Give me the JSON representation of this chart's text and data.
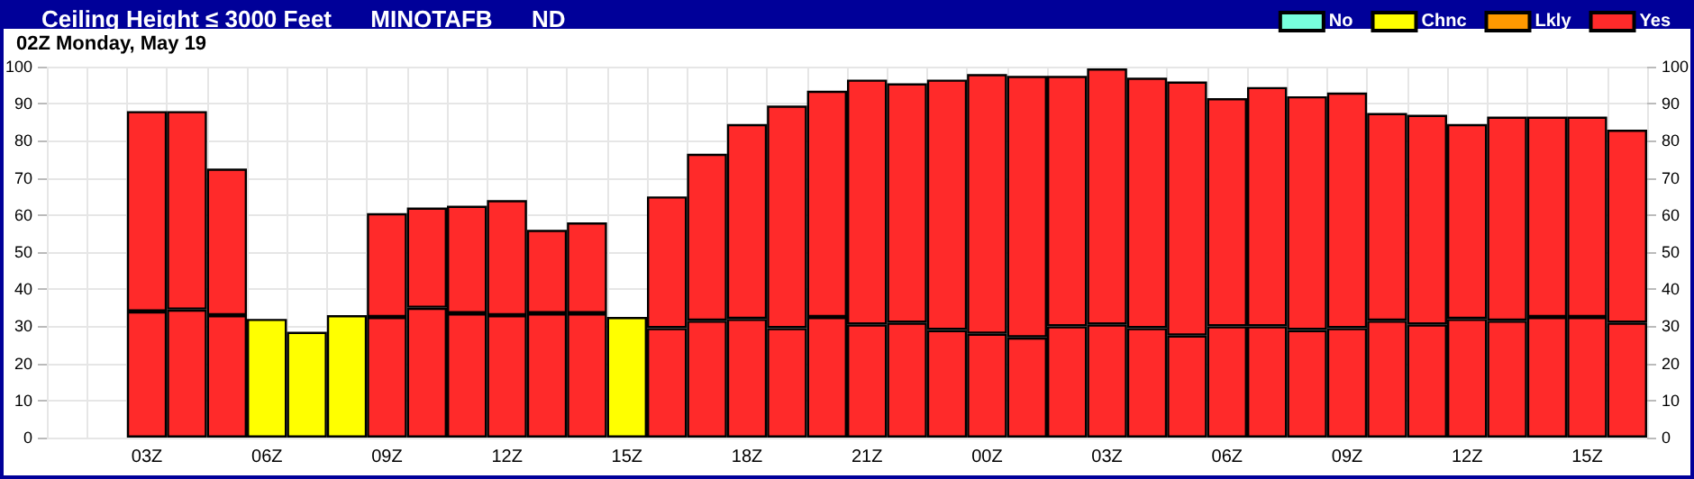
{
  "chart_data": {
    "type": "bar",
    "stacked": true,
    "title": "Ceiling Height ≤ 3000 Feet      MINOTAFB      ND",
    "subtitle": "02Z Monday, May 19",
    "categories": [
      null,
      null,
      "03Z",
      null,
      null,
      "06Z",
      null,
      null,
      "09Z",
      null,
      null,
      "12Z",
      null,
      null,
      "15Z",
      null,
      null,
      "18Z",
      null,
      null,
      "21Z",
      null,
      null,
      "00Z",
      null,
      null,
      "03Z",
      null,
      null,
      "06Z",
      null,
      null,
      "09Z",
      null,
      null,
      "12Z",
      null,
      null,
      "15Z",
      null
    ],
    "series": [
      {
        "name": "No",
        "color": "#77ffdd",
        "values": [
          null,
          null,
          null,
          null,
          null,
          null,
          null,
          null,
          null,
          null,
          null,
          null,
          null,
          null,
          null,
          null,
          null,
          null,
          null,
          null,
          null,
          null,
          null,
          null,
          null,
          null,
          null,
          null,
          null,
          null,
          null,
          null,
          null,
          null,
          null,
          null,
          null,
          null,
          null,
          null
        ]
      },
      {
        "name": "Chnc",
        "color": "#ffff00",
        "values": [
          null,
          null,
          null,
          null,
          null,
          32,
          28.5,
          33,
          null,
          null,
          null,
          null,
          null,
          null,
          32.5,
          null,
          null,
          null,
          null,
          null,
          null,
          null,
          null,
          null,
          null,
          null,
          null,
          null,
          null,
          null,
          null,
          null,
          null,
          null,
          null,
          null,
          null,
          null,
          null,
          null
        ]
      },
      {
        "name": "Lkly",
        "color": "#ff9900",
        "values": [
          null,
          null,
          null,
          null,
          null,
          null,
          null,
          null,
          null,
          null,
          null,
          null,
          null,
          null,
          null,
          null,
          null,
          null,
          null,
          null,
          null,
          null,
          null,
          null,
          null,
          null,
          null,
          null,
          null,
          null,
          null,
          null,
          null,
          null,
          null,
          null,
          null,
          null,
          null,
          null
        ]
      },
      {
        "name": "Yes",
        "color": "#ff2a2a",
        "values": [
          null,
          null,
          34,
          34.5,
          33,
          null,
          null,
          null,
          32.5,
          35,
          33.5,
          33,
          33.5,
          33.5,
          null,
          29.5,
          31.5,
          32,
          29.5,
          32.5,
          30.5,
          31,
          29,
          28,
          27,
          30,
          30.5,
          29.5,
          27.5,
          30,
          30,
          29,
          29.5,
          31.5,
          30.5,
          32,
          31.5,
          32.5,
          32.5,
          31
        ]
      },
      {
        "color": "#ff2a2a",
        "values": [
          null,
          null,
          54,
          53.5,
          39.5,
          null,
          null,
          null,
          28,
          27,
          29,
          31,
          22.5,
          24.5,
          null,
          35.5,
          45,
          52.5,
          60,
          61,
          66,
          64.5,
          67.5,
          70,
          70.5,
          67.5,
          69,
          67.5,
          68.5,
          61.5,
          64.5,
          63,
          63.5,
          56,
          56.5,
          52.5,
          55,
          54,
          54,
          52
        ]
      }
    ],
    "ylim": [
      0,
      100
    ],
    "yticks": [
      0,
      10,
      20,
      30,
      40,
      50,
      60,
      70,
      80,
      90,
      100
    ],
    "y2lim": [
      0,
      100
    ],
    "y2ticks": [
      0,
      10,
      20,
      30,
      40,
      50,
      60,
      70,
      80,
      90,
      100
    ],
    "grid": true,
    "legend": "top right"
  }
}
